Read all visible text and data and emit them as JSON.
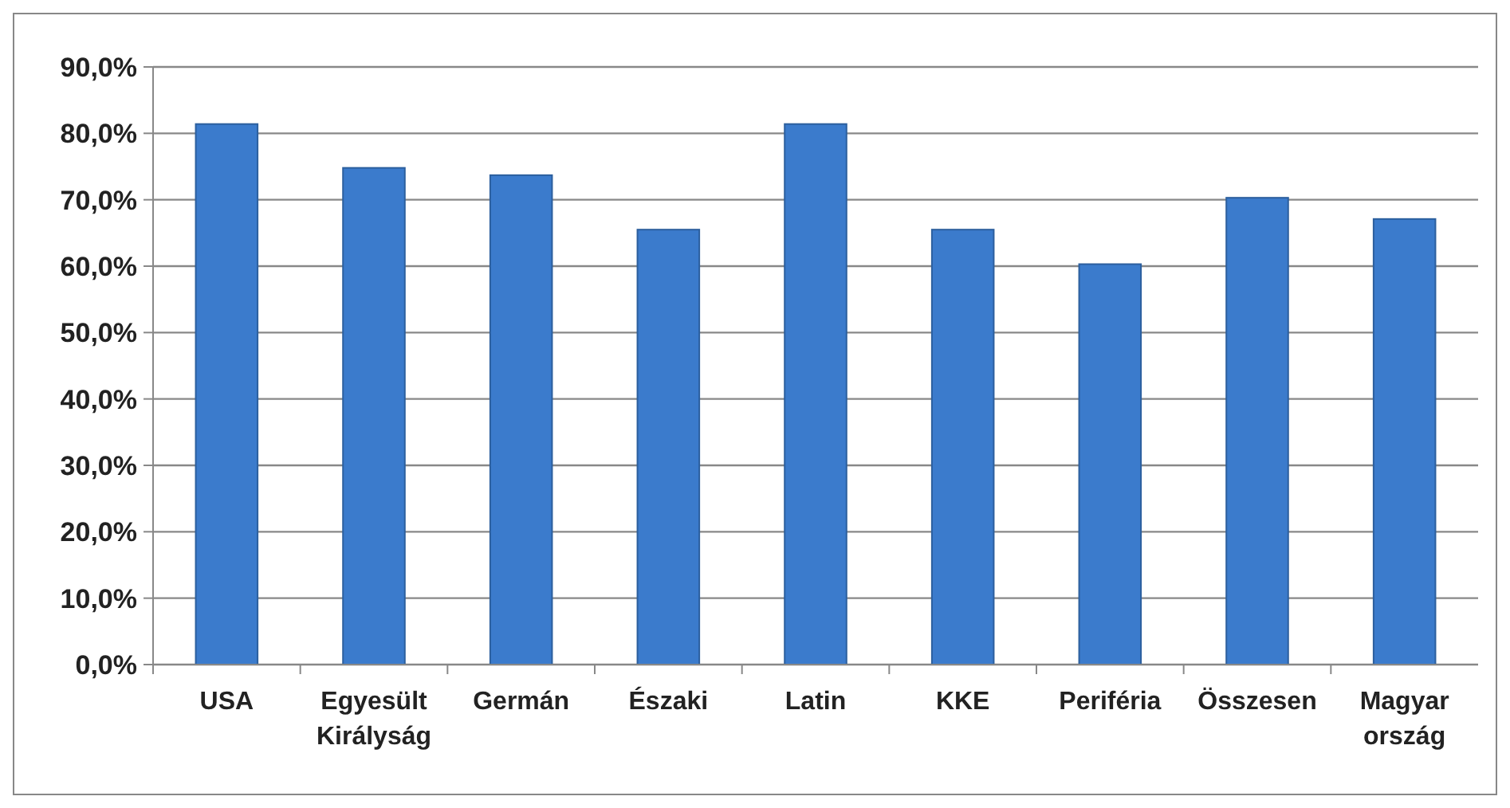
{
  "chart_data": {
    "type": "bar",
    "categories": [
      "USA",
      "Egyesült\nKirályság",
      "Germán",
      "Északi",
      "Latin",
      "KKE",
      "Periféria",
      "Összesen",
      "Magyar\nország"
    ],
    "values": [
      81.4,
      74.8,
      73.7,
      65.5,
      81.4,
      65.5,
      60.3,
      70.3,
      67.1
    ],
    "color": "#3b7bcc",
    "ylim": [
      0,
      90
    ],
    "yticks": [
      {
        "value": 0,
        "label": "0,0%"
      },
      {
        "value": 10,
        "label": "10,0%"
      },
      {
        "value": 20,
        "label": "20,0%"
      },
      {
        "value": 30,
        "label": "30,0%"
      },
      {
        "value": 40,
        "label": "40,0%"
      },
      {
        "value": 50,
        "label": "50,0%"
      },
      {
        "value": 60,
        "label": "60,0%"
      },
      {
        "value": 70,
        "label": "70,0%"
      },
      {
        "value": 80,
        "label": "80,0%"
      },
      {
        "value": 90,
        "label": "90,0%"
      }
    ],
    "grid": "y"
  }
}
